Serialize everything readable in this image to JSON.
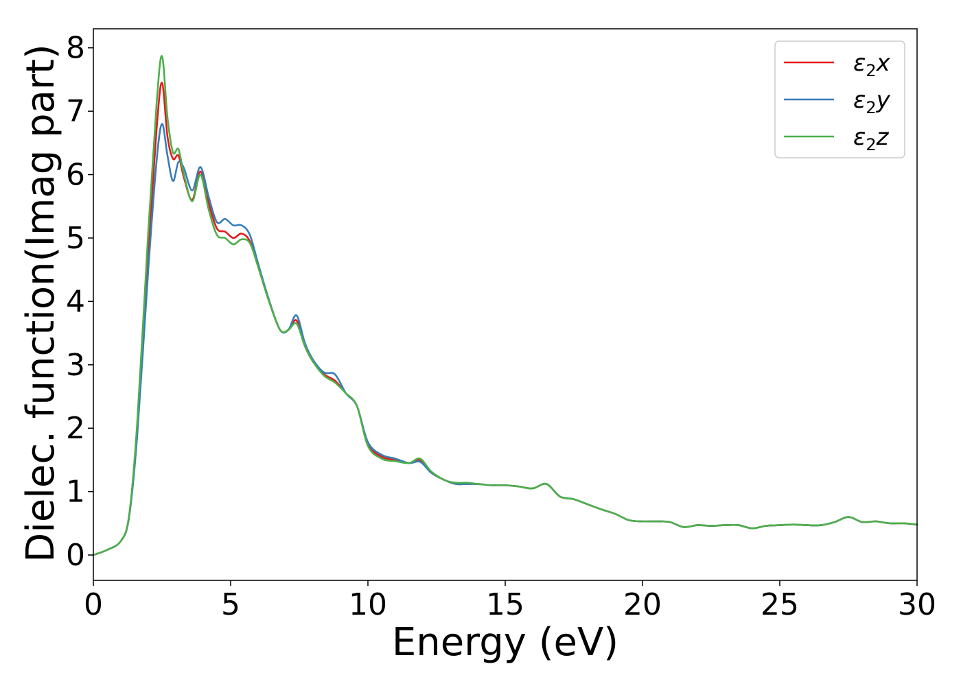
{
  "chart_data": {
    "type": "line",
    "xlabel": "Energy (eV)",
    "ylabel": "Dielec. function(Imag part)",
    "xlim": [
      0,
      30
    ],
    "ylim": [
      -0.4,
      8.3
    ],
    "xticks": [
      "0",
      "5",
      "10",
      "15",
      "20",
      "25",
      "30"
    ],
    "yticks": [
      "0",
      "1",
      "2",
      "3",
      "4",
      "5",
      "6",
      "7",
      "8"
    ],
    "grid": false,
    "legend_position": "top-right",
    "series": [
      {
        "name": "ε₂x",
        "legend_main": "ε",
        "legend_sub": "2",
        "legend_suffix": "x",
        "color": "#e41a1c",
        "x": [
          0,
          0.5,
          1.0,
          1.3,
          1.6,
          2.0,
          2.3,
          2.5,
          2.7,
          2.9,
          3.1,
          3.3,
          3.6,
          3.9,
          4.2,
          4.5,
          4.8,
          5.1,
          5.4,
          5.7,
          6.0,
          6.4,
          6.8,
          7.1,
          7.4,
          7.7,
          8.0,
          8.4,
          8.8,
          9.2,
          9.6,
          10.0,
          10.5,
          11.0,
          11.5,
          11.9,
          12.3,
          12.8,
          13.2,
          13.6,
          14.0,
          14.5,
          15.0,
          15.5,
          16.0,
          16.5,
          17.0,
          17.5,
          18.0,
          18.5,
          19.0,
          19.5,
          20.0,
          20.5,
          21.0,
          21.5,
          22.0,
          22.5,
          23.0,
          23.5,
          24.0,
          24.5,
          25.0,
          25.5,
          26.0,
          26.5,
          27.0,
          27.5,
          28.0,
          28.5,
          29.0,
          29.5,
          30.0
        ],
        "y": [
          0.0,
          0.08,
          0.22,
          0.6,
          2.0,
          4.8,
          6.7,
          7.45,
          6.6,
          6.25,
          6.3,
          5.95,
          5.6,
          6.05,
          5.55,
          5.15,
          5.1,
          5.0,
          5.07,
          4.95,
          4.55,
          4.0,
          3.55,
          3.55,
          3.7,
          3.3,
          3.05,
          2.85,
          2.75,
          2.55,
          2.35,
          1.75,
          1.55,
          1.5,
          1.45,
          1.5,
          1.3,
          1.18,
          1.12,
          1.12,
          1.12,
          1.1,
          1.1,
          1.08,
          1.05,
          1.12,
          0.92,
          0.88,
          0.8,
          0.72,
          0.65,
          0.55,
          0.53,
          0.53,
          0.52,
          0.44,
          0.47,
          0.46,
          0.47,
          0.47,
          0.42,
          0.46,
          0.47,
          0.48,
          0.47,
          0.47,
          0.52,
          0.6,
          0.52,
          0.53,
          0.5,
          0.5,
          0.48
        ]
      },
      {
        "name": "ε₂y",
        "legend_main": "ε",
        "legend_sub": "2",
        "legend_suffix": "y",
        "color": "#377eb8",
        "x": [
          0,
          0.5,
          1.0,
          1.3,
          1.6,
          2.0,
          2.3,
          2.5,
          2.7,
          2.9,
          3.1,
          3.3,
          3.6,
          3.9,
          4.2,
          4.5,
          4.8,
          5.1,
          5.4,
          5.7,
          6.0,
          6.4,
          6.8,
          7.1,
          7.4,
          7.7,
          8.0,
          8.4,
          8.8,
          9.2,
          9.6,
          10.0,
          10.5,
          11.0,
          11.5,
          11.9,
          12.3,
          12.8,
          13.2,
          13.6,
          14.0,
          14.5,
          15.0,
          15.5,
          16.0,
          16.5,
          17.0,
          17.5,
          18.0,
          18.5,
          19.0,
          19.5,
          20.0,
          20.5,
          21.0,
          21.5,
          22.0,
          22.5,
          23.0,
          23.5,
          24.0,
          24.5,
          25.0,
          25.5,
          26.0,
          26.5,
          27.0,
          27.5,
          28.0,
          28.5,
          29.0,
          29.5,
          30.0
        ],
        "y": [
          0.0,
          0.08,
          0.22,
          0.6,
          1.9,
          4.5,
          6.2,
          6.8,
          6.3,
          5.9,
          6.2,
          6.1,
          5.75,
          6.12,
          5.65,
          5.25,
          5.3,
          5.2,
          5.2,
          5.05,
          4.6,
          4.02,
          3.55,
          3.55,
          3.78,
          3.35,
          3.08,
          2.88,
          2.85,
          2.55,
          2.35,
          1.78,
          1.58,
          1.52,
          1.45,
          1.47,
          1.3,
          1.18,
          1.12,
          1.12,
          1.12,
          1.1,
          1.1,
          1.08,
          1.05,
          1.12,
          0.92,
          0.88,
          0.8,
          0.72,
          0.65,
          0.55,
          0.53,
          0.53,
          0.52,
          0.44,
          0.47,
          0.46,
          0.47,
          0.47,
          0.42,
          0.46,
          0.47,
          0.48,
          0.47,
          0.47,
          0.52,
          0.6,
          0.52,
          0.53,
          0.5,
          0.5,
          0.48
        ]
      },
      {
        "name": "ε₂z",
        "legend_main": "ε",
        "legend_sub": "2",
        "legend_suffix": "z",
        "color": "#4daf4a",
        "x": [
          0,
          0.5,
          1.0,
          1.3,
          1.6,
          2.0,
          2.3,
          2.5,
          2.7,
          2.9,
          3.1,
          3.3,
          3.6,
          3.9,
          4.2,
          4.5,
          4.8,
          5.1,
          5.4,
          5.7,
          6.0,
          6.4,
          6.8,
          7.1,
          7.4,
          7.7,
          8.0,
          8.4,
          8.8,
          9.2,
          9.6,
          10.0,
          10.5,
          11.0,
          11.5,
          11.9,
          12.3,
          12.8,
          13.2,
          13.6,
          14.0,
          14.5,
          15.0,
          15.5,
          16.0,
          16.5,
          17.0,
          17.5,
          18.0,
          18.5,
          19.0,
          19.5,
          20.0,
          20.5,
          21.0,
          21.5,
          22.0,
          22.5,
          23.0,
          23.5,
          24.0,
          24.5,
          25.0,
          25.5,
          26.0,
          26.5,
          27.0,
          27.5,
          28.0,
          28.5,
          29.0,
          29.5,
          30.0
        ],
        "y": [
          0.0,
          0.08,
          0.22,
          0.62,
          2.1,
          5.1,
          7.1,
          7.87,
          6.9,
          6.35,
          6.4,
          6.0,
          5.58,
          6.0,
          5.45,
          5.05,
          5.0,
          4.9,
          4.98,
          4.92,
          4.55,
          4.0,
          3.55,
          3.55,
          3.65,
          3.3,
          3.05,
          2.83,
          2.72,
          2.55,
          2.35,
          1.72,
          1.52,
          1.48,
          1.45,
          1.52,
          1.32,
          1.18,
          1.14,
          1.14,
          1.12,
          1.1,
          1.1,
          1.08,
          1.05,
          1.12,
          0.92,
          0.88,
          0.8,
          0.72,
          0.65,
          0.55,
          0.53,
          0.53,
          0.52,
          0.44,
          0.47,
          0.46,
          0.47,
          0.47,
          0.42,
          0.46,
          0.47,
          0.48,
          0.47,
          0.47,
          0.52,
          0.6,
          0.52,
          0.53,
          0.5,
          0.5,
          0.48
        ]
      }
    ]
  }
}
